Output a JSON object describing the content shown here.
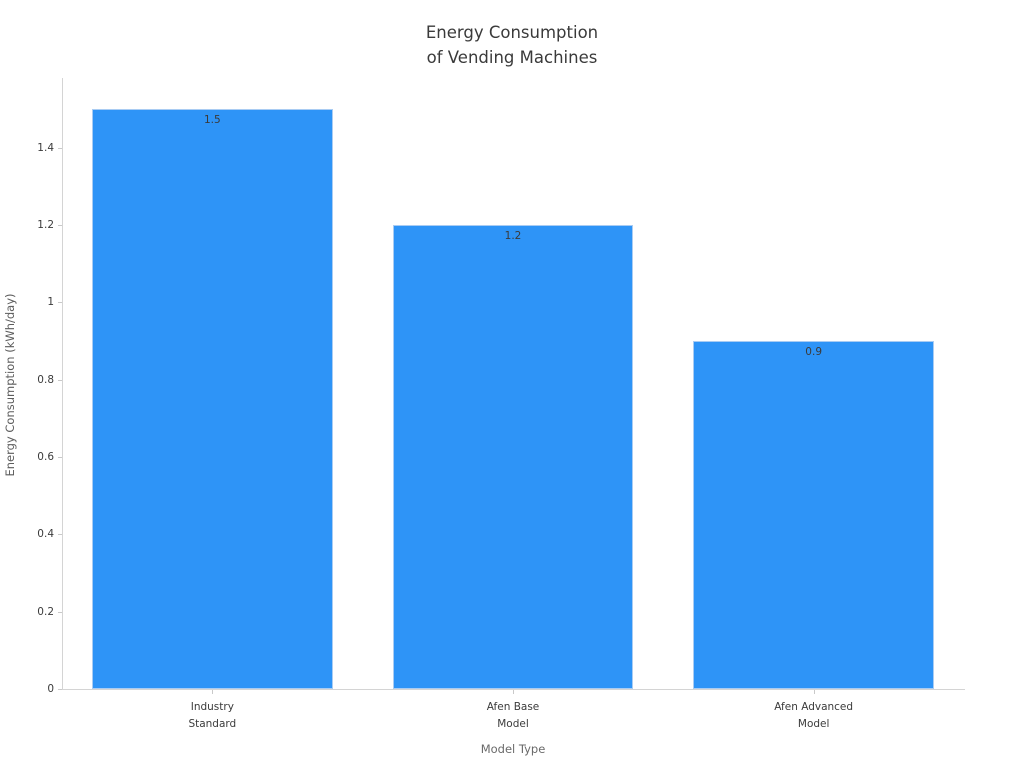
{
  "chart_data": {
    "type": "bar",
    "title": "Energy Consumption\nof Vending Machines",
    "xlabel": "Model Type",
    "ylabel": "Energy Consumption (kWh/day)",
    "categories": [
      "Industry\nStandard",
      "Afen Base\nModel",
      "Afen Advanced\nModel"
    ],
    "values": [
      1.5,
      1.2,
      0.9
    ],
    "value_labels": [
      "1.5",
      "1.2",
      "0.9"
    ],
    "ylim": [
      0,
      1.58
    ],
    "yticks": [
      0,
      0.2,
      0.4,
      0.6,
      0.8,
      1,
      1.2,
      1.4
    ],
    "ytick_labels": [
      "0",
      "0.2",
      "0.4",
      "0.6",
      "0.8",
      "1",
      "1.2",
      "1.4"
    ],
    "grid": false,
    "legend_position": "none",
    "bar_color": "#2e94f7",
    "bar_edge_color": "#a9ccf3",
    "axis_color": "#d4d4d4",
    "title_color": "#3a3a3a",
    "tick_label_color": "#3b3b3b",
    "axis_label_color": "#5d5d5d"
  }
}
